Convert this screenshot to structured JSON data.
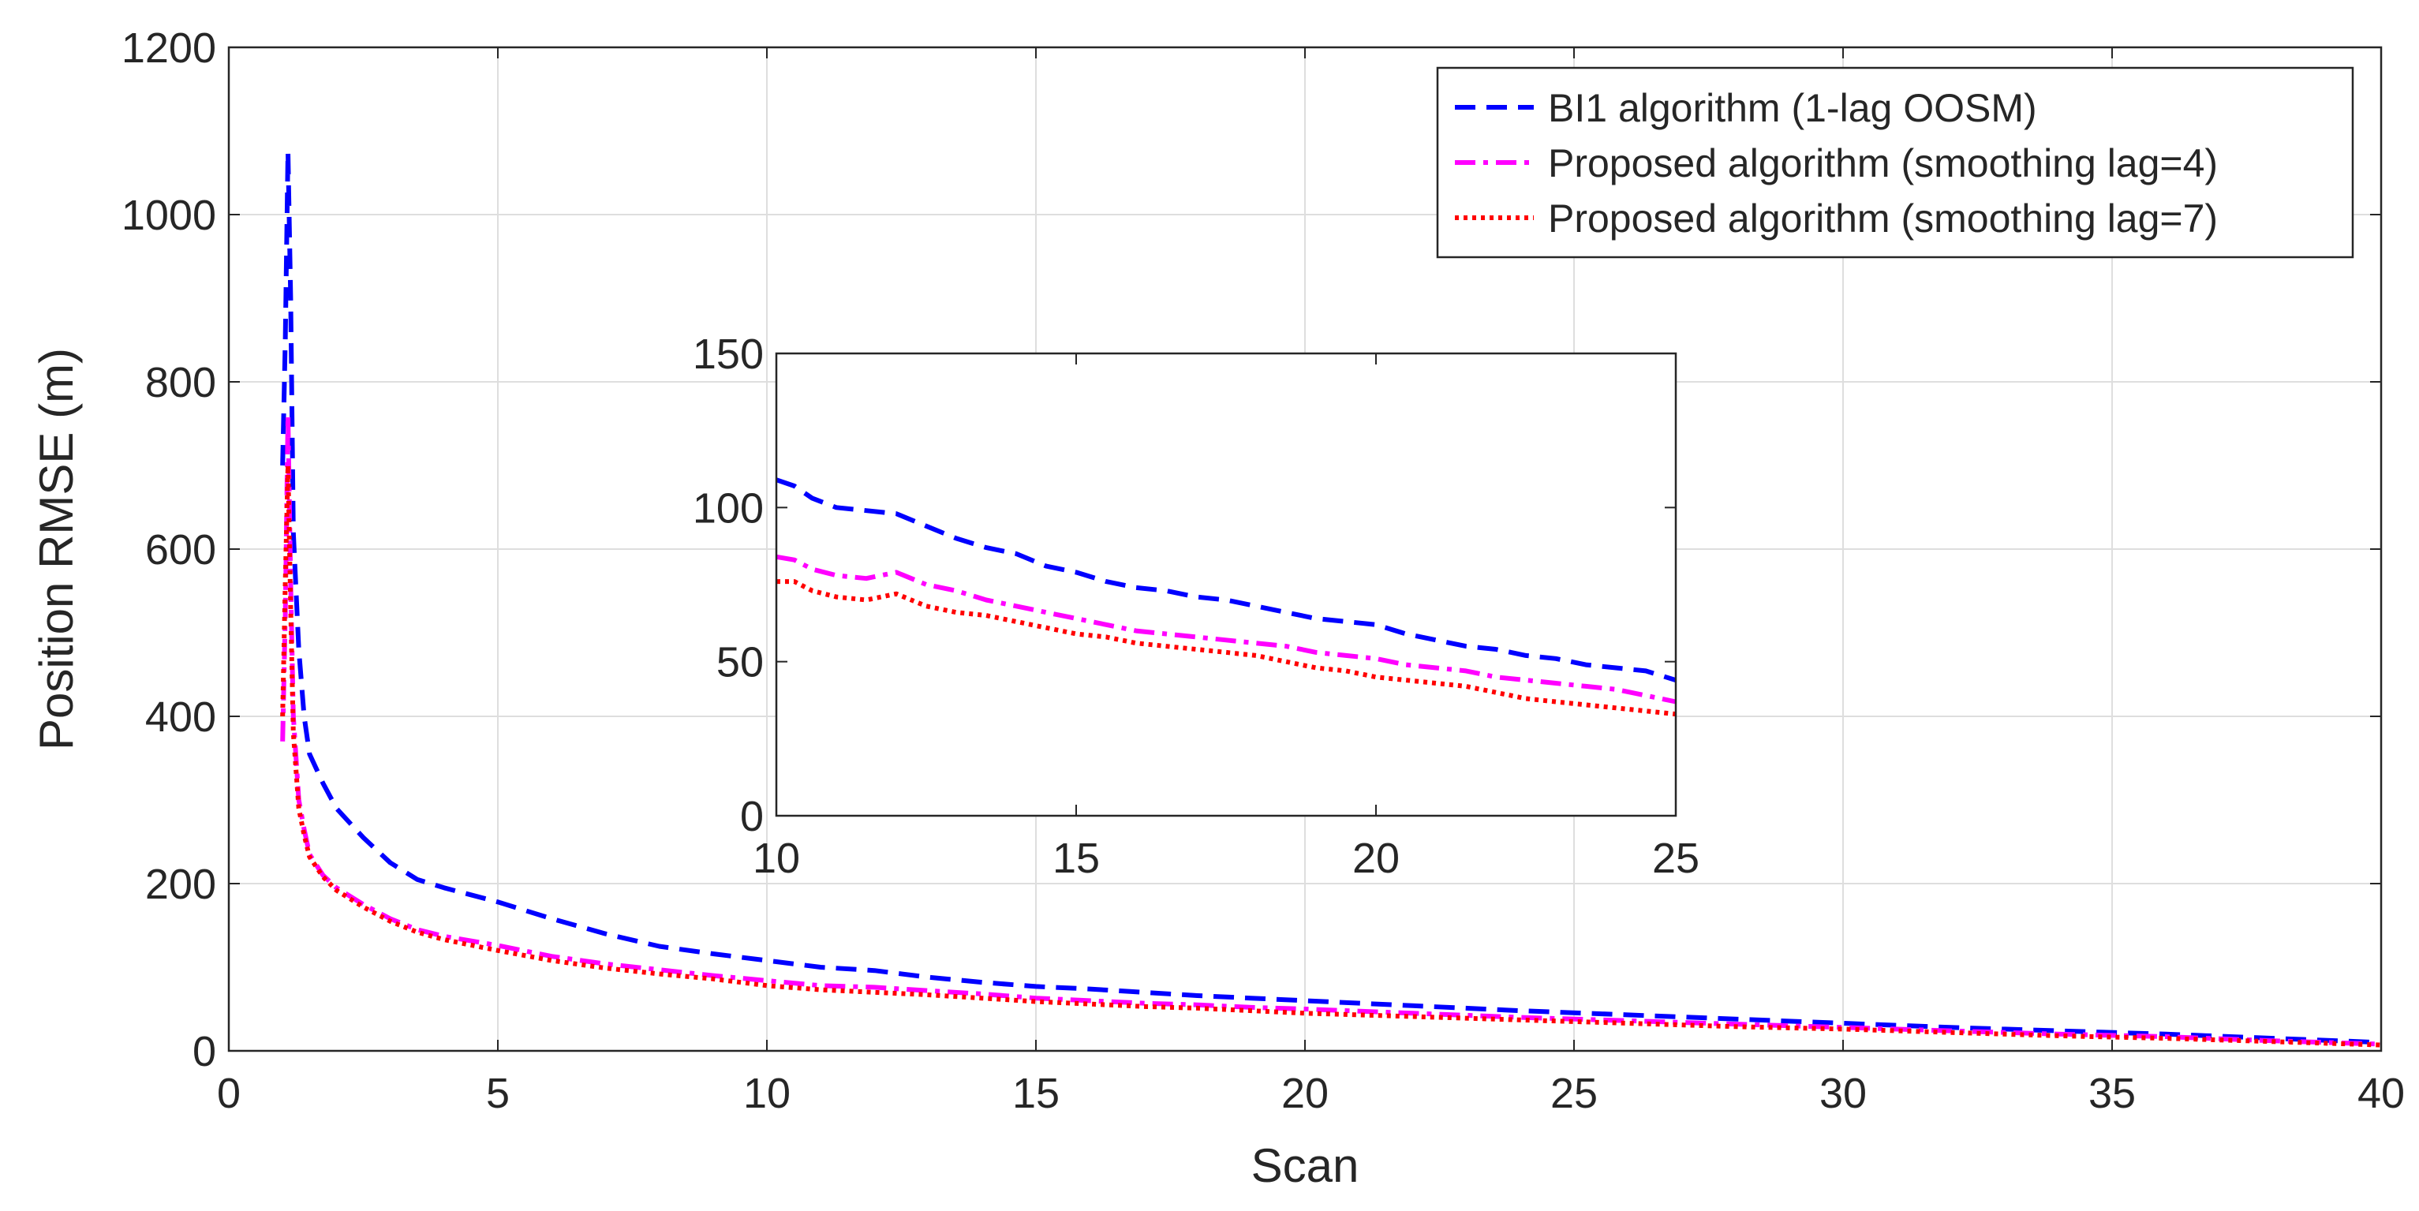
{
  "chart_data": [
    {
      "type": "line",
      "role": "main",
      "title": "",
      "xlabel": "Scan",
      "ylabel": "Position RMSE (m)",
      "xlim": [
        0,
        40
      ],
      "ylim": [
        0,
        1200
      ],
      "xticks": [
        "0",
        "5",
        "10",
        "15",
        "20",
        "25",
        "30",
        "35",
        "40"
      ],
      "yticks": [
        "0",
        "200",
        "400",
        "600",
        "800",
        "1000",
        "1200"
      ],
      "grid": true,
      "legend_position": "top-right",
      "series": [
        {
          "name": "BI1 algorithm (1-lag OOSM)",
          "color": "#0000ff",
          "style": "dashed",
          "x": [
            1.0,
            1.05,
            1.1,
            1.15,
            1.2,
            1.3,
            1.4,
            1.5,
            1.75,
            2,
            2.5,
            3,
            3.5,
            4,
            5,
            6,
            7,
            8,
            9,
            10,
            11,
            12,
            13,
            14,
            15,
            16,
            17,
            18,
            19,
            20,
            22,
            24,
            26,
            28,
            30,
            32,
            34,
            36,
            38,
            40
          ],
          "y": [
            700,
            850,
            1075,
            900,
            620,
            480,
            400,
            355,
            320,
            290,
            255,
            225,
            205,
            195,
            178,
            158,
            140,
            125,
            116,
            108,
            100,
            96,
            88,
            82,
            77,
            74,
            70,
            66,
            63,
            60,
            54,
            48,
            43,
            38,
            33,
            28,
            24,
            20,
            15,
            10
          ]
        },
        {
          "name": "Proposed algorithm (smoothing lag=4)",
          "color": "#ff00ff",
          "style": "dash-dot",
          "x": [
            1.0,
            1.05,
            1.1,
            1.15,
            1.2,
            1.3,
            1.4,
            1.5,
            1.75,
            2,
            2.5,
            3,
            3.5,
            4,
            5,
            6,
            7,
            8,
            9,
            10,
            11,
            12,
            13,
            14,
            15,
            16,
            17,
            18,
            19,
            20,
            22,
            24,
            26,
            28,
            30,
            32,
            34,
            36,
            38,
            40
          ],
          "y": [
            370,
            520,
            760,
            560,
            400,
            300,
            265,
            235,
            210,
            195,
            175,
            158,
            145,
            137,
            126,
            113,
            104,
            97,
            90,
            84,
            78,
            76,
            72,
            68,
            63,
            60,
            57,
            55,
            52,
            50,
            45,
            40,
            36,
            32,
            28,
            24,
            20,
            17,
            12,
            8
          ]
        },
        {
          "name": "Proposed algorithm (smoothing lag=7)",
          "color": "#ff0000",
          "style": "dotted",
          "x": [
            1.0,
            1.05,
            1.1,
            1.15,
            1.2,
            1.3,
            1.4,
            1.5,
            1.75,
            2,
            2.5,
            3,
            3.5,
            4,
            5,
            6,
            7,
            8,
            9,
            10,
            11,
            12,
            13,
            14,
            15,
            16,
            17,
            18,
            19,
            20,
            22,
            24,
            26,
            28,
            30,
            32,
            34,
            36,
            38,
            40
          ],
          "y": [
            400,
            560,
            700,
            530,
            380,
            290,
            258,
            232,
            208,
            192,
            172,
            155,
            142,
            133,
            120,
            108,
            99,
            92,
            86,
            78,
            73,
            70,
            67,
            63,
            59,
            56,
            53,
            51,
            48,
            45,
            41,
            37,
            33,
            29,
            26,
            22,
            18,
            15,
            11,
            7
          ]
        }
      ]
    },
    {
      "type": "line",
      "role": "inset",
      "title": "",
      "xlabel": "",
      "ylabel": "",
      "xlim": [
        10,
        25
      ],
      "ylim": [
        0,
        150
      ],
      "xticks": [
        "10",
        "15",
        "20",
        "25"
      ],
      "yticks": [
        "0",
        "50",
        "100",
        "150"
      ],
      "grid": false,
      "series": [
        {
          "name": "BI1 algorithm (1-lag OOSM)",
          "color": "#0000ff",
          "style": "dashed",
          "x": [
            10,
            10.3,
            10.6,
            11,
            11.5,
            12,
            12.5,
            13,
            13.5,
            14,
            14.5,
            15,
            15.5,
            16,
            16.5,
            17,
            17.5,
            18,
            18.5,
            19,
            19.5,
            20,
            20.5,
            21,
            21.5,
            22,
            22.5,
            23,
            23.5,
            24,
            24.5,
            25
          ],
          "y": [
            109,
            107,
            103,
            100,
            99,
            98,
            94,
            90,
            87,
            85,
            81,
            79,
            76,
            74,
            73,
            71,
            70,
            68,
            66,
            64,
            63,
            62,
            59,
            57,
            55,
            54,
            52,
            51,
            49,
            48,
            47,
            44
          ]
        },
        {
          "name": "Proposed algorithm (smoothing lag=4)",
          "color": "#ff00ff",
          "style": "dash-dot",
          "x": [
            10,
            10.3,
            10.6,
            11,
            11.5,
            12,
            12.5,
            13,
            13.5,
            14,
            14.5,
            15,
            15.5,
            16,
            16.5,
            17,
            17.5,
            18,
            18.5,
            19,
            19.5,
            20,
            20.5,
            21,
            21.5,
            22,
            22.5,
            23,
            23.5,
            24,
            24.5,
            25
          ],
          "y": [
            84,
            83,
            80,
            78,
            77,
            79,
            75,
            73,
            70,
            68,
            66,
            64,
            62,
            60,
            59,
            58,
            57,
            56,
            55,
            53,
            52,
            51,
            49,
            48,
            47,
            45,
            44,
            43,
            42,
            41,
            39,
            37
          ]
        },
        {
          "name": "Proposed algorithm (smoothing lag=7)",
          "color": "#ff0000",
          "style": "dotted",
          "x": [
            10,
            10.3,
            10.6,
            11,
            11.5,
            12,
            12.5,
            13,
            13.5,
            14,
            14.5,
            15,
            15.5,
            16,
            16.5,
            17,
            17.5,
            18,
            18.5,
            19,
            19.5,
            20,
            20.5,
            21,
            21.5,
            22,
            22.5,
            23,
            23.5,
            24,
            24.5,
            25
          ],
          "y": [
            76,
            76,
            73,
            71,
            70,
            72,
            68,
            66,
            65,
            63,
            61,
            59,
            58,
            56,
            55,
            54,
            53,
            52,
            50,
            48,
            47,
            45,
            44,
            43,
            42,
            40,
            38,
            37,
            36,
            35,
            34,
            33
          ]
        }
      ]
    }
  ]
}
